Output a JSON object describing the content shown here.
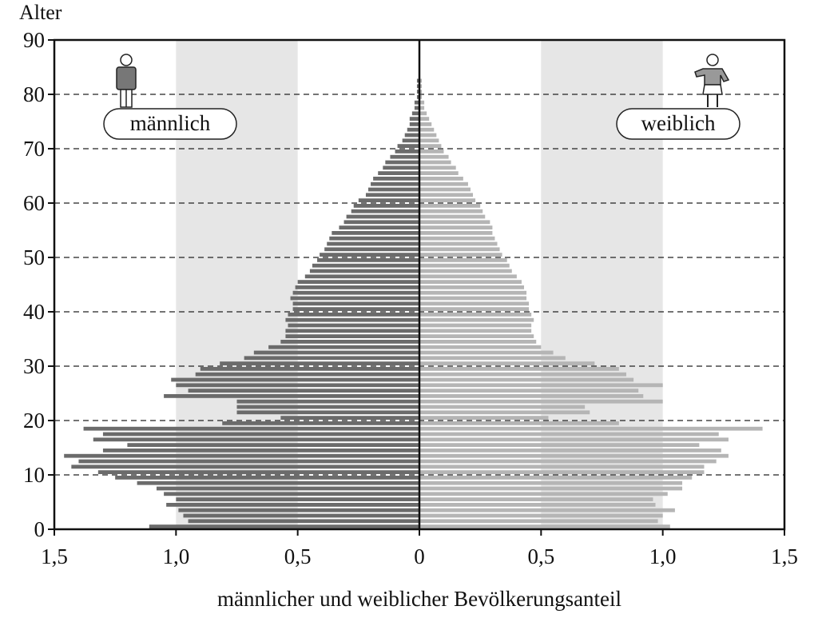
{
  "chart_data": {
    "type": "pyramid",
    "y_label": "Alter",
    "x_label": "männlicher und weiblicher Bevölkerungsanteil",
    "ylim": [
      0,
      90
    ],
    "yticks": [
      0,
      10,
      20,
      30,
      40,
      50,
      60,
      70,
      80,
      90
    ],
    "xlim": [
      -1.5,
      1.5
    ],
    "xticks": [
      {
        "value": -1.5,
        "label": "1,5"
      },
      {
        "value": -1.0,
        "label": "1,0"
      },
      {
        "value": -0.5,
        "label": "0,5"
      },
      0,
      {
        "value": 0.5,
        "label": "0,5"
      },
      {
        "value": 1.0,
        "label": "1,0"
      },
      {
        "value": 1.5,
        "label": "1,5"
      }
    ],
    "grid": true,
    "ages": [
      0,
      1,
      2,
      3,
      4,
      5,
      6,
      7,
      8,
      9,
      10,
      11,
      12,
      13,
      14,
      15,
      16,
      17,
      18,
      19,
      20,
      21,
      22,
      23,
      24,
      25,
      26,
      27,
      28,
      29,
      30,
      31,
      32,
      33,
      34,
      35,
      36,
      37,
      38,
      39,
      40,
      41,
      42,
      43,
      44,
      45,
      46,
      47,
      48,
      49,
      50,
      51,
      52,
      53,
      54,
      55,
      56,
      57,
      58,
      59,
      60,
      61,
      62,
      63,
      64,
      65,
      66,
      67,
      68,
      69,
      70,
      71,
      72,
      73,
      74,
      75,
      76,
      77,
      78,
      79,
      80,
      81,
      82
    ],
    "series": [
      {
        "name": "männlich",
        "side": "left",
        "color": "#6b6b6b",
        "values": [
          1.11,
          0.95,
          0.97,
          0.99,
          1.04,
          1.0,
          1.05,
          1.08,
          1.16,
          1.25,
          1.32,
          1.43,
          1.4,
          1.46,
          1.3,
          1.2,
          1.34,
          1.3,
          1.38,
          0.81,
          0.57,
          0.75,
          0.75,
          0.75,
          1.05,
          0.95,
          1.0,
          1.02,
          0.92,
          0.9,
          0.82,
          0.72,
          0.68,
          0.62,
          0.57,
          0.55,
          0.55,
          0.54,
          0.55,
          0.54,
          0.52,
          0.52,
          0.53,
          0.52,
          0.51,
          0.5,
          0.47,
          0.45,
          0.44,
          0.42,
          0.41,
          0.39,
          0.38,
          0.37,
          0.36,
          0.33,
          0.31,
          0.3,
          0.28,
          0.27,
          0.25,
          0.22,
          0.21,
          0.2,
          0.19,
          0.17,
          0.15,
          0.14,
          0.12,
          0.1,
          0.09,
          0.07,
          0.06,
          0.05,
          0.04,
          0.04,
          0.03,
          0.02,
          0.02,
          0.01,
          0.01,
          0.01,
          0.01
        ]
      },
      {
        "name": "weiblich",
        "side": "right",
        "color": "#b5b5b5",
        "values": [
          1.03,
          0.98,
          1.0,
          1.05,
          0.97,
          0.96,
          1.02,
          1.08,
          1.08,
          1.12,
          1.17,
          1.17,
          1.22,
          1.27,
          1.24,
          1.15,
          1.27,
          1.23,
          1.41,
          0.82,
          0.53,
          0.7,
          0.68,
          1.0,
          0.92,
          0.9,
          1.0,
          0.88,
          0.85,
          0.82,
          0.72,
          0.6,
          0.55,
          0.5,
          0.48,
          0.47,
          0.46,
          0.46,
          0.47,
          0.46,
          0.45,
          0.45,
          0.44,
          0.44,
          0.43,
          0.42,
          0.4,
          0.38,
          0.37,
          0.36,
          0.34,
          0.33,
          0.32,
          0.31,
          0.3,
          0.3,
          0.29,
          0.27,
          0.26,
          0.25,
          0.23,
          0.22,
          0.21,
          0.2,
          0.18,
          0.16,
          0.15,
          0.13,
          0.12,
          0.1,
          0.09,
          0.08,
          0.07,
          0.06,
          0.05,
          0.04,
          0.03,
          0.02,
          0.02,
          0.01,
          0.01,
          0.01,
          0.01
        ]
      }
    ]
  }
}
